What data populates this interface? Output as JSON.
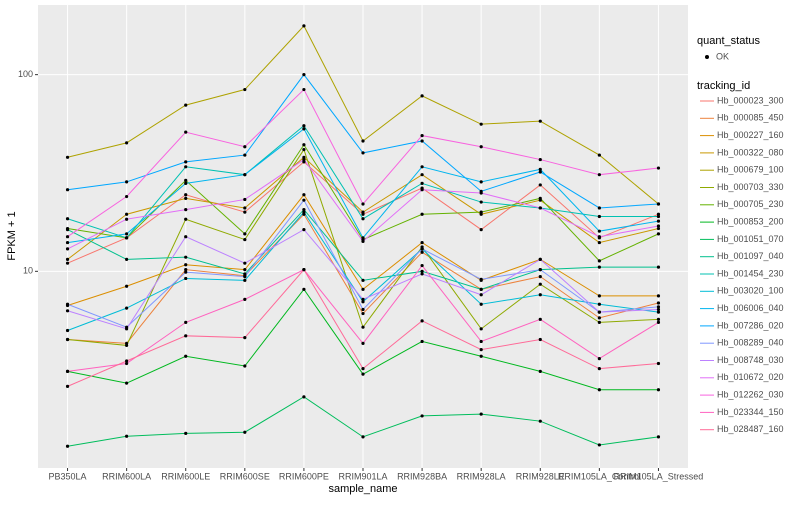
{
  "chart_data": {
    "type": "line",
    "log_scale": true,
    "grid": true,
    "x_label": "sample_name",
    "y_label": "FPKM + 1",
    "legend_title": "tracking_id",
    "shape_legend": {
      "title": "quant_status",
      "items": [
        "OK"
      ]
    },
    "categories": [
      "PB350LA",
      "RRIM600LA",
      "RRIM600LE",
      "RRIM600SE",
      "RRIM600PE",
      "RRIM901LA",
      "RRIM928BA",
      "RRIM928LA",
      "RRIM928LE",
      "RRIM105LA_Control",
      "RRIM105LA_Stressed"
    ],
    "ylim": [
      1.0,
      226
    ],
    "yticks": [
      10,
      100
    ],
    "series": [
      {
        "name": "Hb_000023_300",
        "color": "#F8766D",
        "values": [
          11,
          14.8,
          24.5,
          20,
          36,
          19.5,
          26.5,
          16.3,
          27.5,
          14.8,
          19.5
        ]
      },
      {
        "name": "Hb_000085_450",
        "color": "#EC823C",
        "values": [
          4.5,
          4.3,
          10.2,
          9.5,
          19.5,
          6.1,
          12.5,
          8.1,
          9.4,
          5.8,
          6.9
        ]
      },
      {
        "name": "Hb_000227_160",
        "color": "#DB8E00",
        "values": [
          6.7,
          8.4,
          10.8,
          10.2,
          24.5,
          8.1,
          14,
          9,
          11.5,
          7.5,
          7.5
        ]
      },
      {
        "name": "Hb_000322_080",
        "color": "#C99800",
        "values": [
          11.5,
          19.5,
          23.5,
          21,
          38,
          20,
          31,
          19.5,
          23,
          14,
          16.5
        ]
      },
      {
        "name": "Hb_000679_100",
        "color": "#AEA200",
        "values": [
          38,
          45,
          70,
          84,
          177,
          46,
          78,
          56,
          58,
          39,
          22
        ]
      },
      {
        "name": "Hb_000703_330",
        "color": "#8FAA00",
        "values": [
          4.5,
          4.2,
          18.4,
          14.5,
          41.6,
          5.2,
          13.3,
          5.1,
          8.6,
          5.5,
          5.7
        ]
      },
      {
        "name": "Hb_000705_230",
        "color": "#64B200",
        "values": [
          16.5,
          14.8,
          29,
          15.5,
          44,
          14.5,
          19.5,
          20,
          23.5,
          11.3,
          15.5
        ]
      },
      {
        "name": "Hb_000853_200",
        "color": "#00B81F",
        "values": [
          3.1,
          2.7,
          3.7,
          3.3,
          8.1,
          3.0,
          4.4,
          3.7,
          3.1,
          2.5,
          2.5
        ]
      },
      {
        "name": "Hb_001051_070",
        "color": "#00BD5C",
        "values": [
          1.29,
          1.45,
          1.5,
          1.52,
          2.3,
          1.44,
          1.84,
          1.88,
          1.73,
          1.31,
          1.44
        ]
      },
      {
        "name": "Hb_001097_040",
        "color": "#00C08D",
        "values": [
          16.3,
          11.5,
          11.8,
          9.7,
          20.6,
          9,
          10,
          8.1,
          10.2,
          10.5,
          10.5
        ]
      },
      {
        "name": "Hb_001454_230",
        "color": "#00C1B2",
        "values": [
          18.5,
          14.8,
          34,
          31,
          55,
          18.5,
          28,
          22.5,
          21,
          19,
          19
        ]
      },
      {
        "name": "Hb_003020_100",
        "color": "#00BCD6",
        "values": [
          5,
          6.5,
          9.2,
          9,
          20,
          7,
          13,
          6.8,
          7.6,
          6.8,
          6.2
        ]
      },
      {
        "name": "Hb_006006_040",
        "color": "#00B5EE",
        "values": [
          14,
          15.5,
          28,
          31,
          53,
          14.8,
          34,
          28.5,
          33,
          16,
          18
        ]
      },
      {
        "name": "Hb_007286_020",
        "color": "#00A7FF",
        "values": [
          26,
          28.5,
          36,
          39,
          100,
          40,
          46,
          25.5,
          32,
          21,
          22
        ]
      },
      {
        "name": "Hb_008289_040",
        "color": "#7F96FF",
        "values": [
          6.8,
          5.2,
          9.9,
          9.4,
          23,
          6.4,
          13,
          9.1,
          10.2,
          6.2,
          6.6
        ]
      },
      {
        "name": "Hb_008748_030",
        "color": "#BC81FF",
        "values": [
          6.3,
          5.1,
          15,
          11,
          16.3,
          7.2,
          9.7,
          7.6,
          11.5,
          6.2,
          6.4
        ]
      },
      {
        "name": "Hb_010672_020",
        "color": "#E26EF7",
        "values": [
          13,
          18.4,
          20.6,
          23.2,
          37,
          14.2,
          26,
          25,
          21,
          15,
          17
        ]
      },
      {
        "name": "Hb_012262_030",
        "color": "#F863DF",
        "values": [
          15,
          24,
          51,
          43,
          84,
          22,
          49,
          43,
          37,
          31,
          33.5
        ]
      },
      {
        "name": "Hb_023344_150",
        "color": "#FF62BF",
        "values": [
          3.1,
          3.4,
          5.5,
          7.2,
          10.2,
          4.3,
          10.7,
          4.4,
          5.7,
          3.6,
          5.5
        ]
      },
      {
        "name": "Hb_028487_160",
        "color": "#FF6A98",
        "values": [
          2.6,
          3.5,
          4.7,
          4.6,
          10.2,
          3.2,
          5.6,
          4.0,
          4.5,
          3.2,
          3.4
        ]
      }
    ]
  }
}
